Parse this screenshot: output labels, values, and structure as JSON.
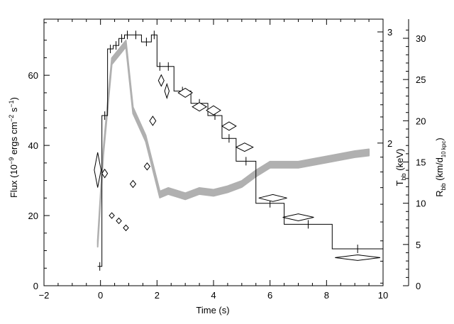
{
  "chart_data": {
    "type": "line",
    "x_axis": {
      "label": "Time (s)",
      "range": [
        -2,
        10
      ],
      "ticks": [
        -2,
        0,
        2,
        4,
        6,
        8,
        10
      ]
    },
    "y_left": {
      "label_main": "Flux (10",
      "label_exp1": "−9",
      "label_mid": " ergs cm",
      "label_exp2": "−2",
      "label_mid2": " s",
      "label_exp3": "−1",
      "label_end": ")",
      "range": [
        0,
        76
      ],
      "ticks": [
        0,
        20,
        40,
        60
      ]
    },
    "y_temp": {
      "label_main": "T",
      "label_sub": "bb",
      "label_end": " (keV)",
      "scale": "log",
      "labeled_ticks": [
        2,
        3
      ]
    },
    "y_radius": {
      "label_main": "R",
      "label_sub": "bb",
      "label_mid": " (km/d",
      "label_sub2": "10 kpc",
      "label_end": ")",
      "range": [
        0,
        32
      ],
      "ticks": [
        0,
        5,
        10,
        15,
        20,
        25,
        30
      ]
    },
    "series": [
      {
        "style": "black-step-with-error-bars",
        "points": [
          {
            "x0": -0.1,
            "x1": 0.05,
            "y": 5.5
          },
          {
            "x0": 0.05,
            "x1": 0.25,
            "y": 48.5
          },
          {
            "x0": 0.25,
            "x1": 0.45,
            "y": 67.5
          },
          {
            "x0": 0.45,
            "x1": 0.65,
            "y": 68.5
          },
          {
            "x0": 0.65,
            "x1": 0.85,
            "y": 70.5
          },
          {
            "x0": 0.85,
            "x1": 1.05,
            "y": 71.5
          },
          {
            "x0": 1.05,
            "x1": 1.45,
            "y": 71.5
          },
          {
            "x0": 1.45,
            "x1": 1.8,
            "y": 69.5
          },
          {
            "x0": 1.8,
            "x1": 2.0,
            "y": 71.5
          },
          {
            "x0": 2.0,
            "x1": 2.2,
            "y": 62.5
          },
          {
            "x0": 2.2,
            "x1": 2.6,
            "y": 62.5
          },
          {
            "x0": 2.6,
            "x1": 3.2,
            "y": 55.5
          },
          {
            "x0": 3.2,
            "x1": 3.8,
            "y": 52
          },
          {
            "x0": 3.8,
            "x1": 4.3,
            "y": 48.5
          },
          {
            "x0": 4.3,
            "x1": 4.8,
            "y": 42
          },
          {
            "x0": 4.8,
            "x1": 5.5,
            "y": 35.5
          },
          {
            "x0": 5.5,
            "x1": 6.5,
            "y": 23.5
          },
          {
            "x0": 6.5,
            "x1": 8.2,
            "y": 17.5
          },
          {
            "x0": 8.2,
            "x1": 10.0,
            "y": 10.5
          }
        ]
      },
      {
        "style": "gray-band",
        "points": [
          {
            "x": -0.1,
            "y": 12
          },
          {
            "x": 0.1,
            "y": 38
          },
          {
            "x": 0.4,
            "y": 64
          },
          {
            "x": 0.9,
            "y": 69
          },
          {
            "x": 1.15,
            "y": 50
          },
          {
            "x": 1.6,
            "y": 42
          },
          {
            "x": 2.1,
            "y": 26
          },
          {
            "x": 2.4,
            "y": 27
          },
          {
            "x": 3.0,
            "y": 25.5
          },
          {
            "x": 3.5,
            "y": 27
          },
          {
            "x": 4.0,
            "y": 26.5
          },
          {
            "x": 4.5,
            "y": 27.5
          },
          {
            "x": 5.0,
            "y": 29
          },
          {
            "x": 5.5,
            "y": 32
          },
          {
            "x": 6.0,
            "y": 34.5
          },
          {
            "x": 7.0,
            "y": 34.5
          },
          {
            "x": 8.0,
            "y": 36
          },
          {
            "x": 9.0,
            "y": 37.5
          },
          {
            "x": 9.5,
            "y": 38
          }
        ]
      },
      {
        "style": "open-diamonds",
        "points": [
          {
            "x": -0.1,
            "y": 33,
            "dx": 0.12,
            "dy": 5
          },
          {
            "x": 0.15,
            "y": 32,
            "dx": 0.1,
            "dy": 1.2
          },
          {
            "x": 0.4,
            "y": 20,
            "dx": 0.09,
            "dy": 0.8
          },
          {
            "x": 0.65,
            "y": 18.5,
            "dx": 0.09,
            "dy": 0.8
          },
          {
            "x": 0.9,
            "y": 16.5,
            "dx": 0.09,
            "dy": 0.8
          },
          {
            "x": 1.15,
            "y": 29,
            "dx": 0.1,
            "dy": 1
          },
          {
            "x": 1.65,
            "y": 34,
            "dx": 0.1,
            "dy": 1
          },
          {
            "x": 1.85,
            "y": 47,
            "dx": 0.11,
            "dy": 1.3
          },
          {
            "x": 2.15,
            "y": 58.5,
            "dx": 0.1,
            "dy": 1.6
          },
          {
            "x": 2.35,
            "y": 55.5,
            "dx": 0.08,
            "dy": 2
          },
          {
            "x": 3.0,
            "y": 55,
            "dx": 0.25,
            "dy": 1.3
          },
          {
            "x": 3.5,
            "y": 51,
            "dx": 0.25,
            "dy": 1.2
          },
          {
            "x": 4.0,
            "y": 50,
            "dx": 0.25,
            "dy": 1.3
          },
          {
            "x": 4.55,
            "y": 45.5,
            "dx": 0.25,
            "dy": 1.2
          },
          {
            "x": 5.1,
            "y": 39.5,
            "dx": 0.3,
            "dy": 1.2
          },
          {
            "x": 6.1,
            "y": 25,
            "dx": 0.5,
            "dy": 1
          },
          {
            "x": 7.0,
            "y": 19.5,
            "dx": 0.55,
            "dy": 1
          },
          {
            "x": 9.1,
            "y": 8,
            "dx": 0.8,
            "dy": 0.8
          }
        ]
      }
    ]
  }
}
